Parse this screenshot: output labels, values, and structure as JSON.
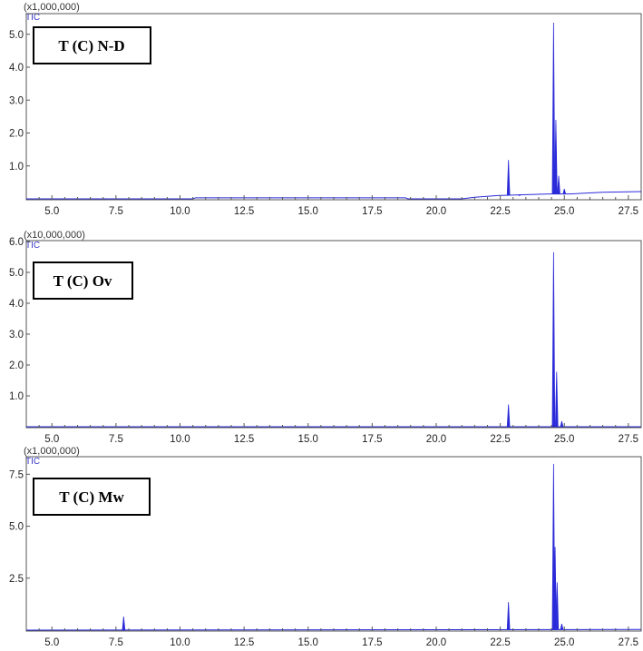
{
  "colors": {
    "trace": "#2b2bd9",
    "axis": "#555555",
    "background": "#ffffff"
  },
  "chart_data": [
    {
      "type": "line",
      "title": "T (C) N-D",
      "series_label": "TIC",
      "y_scale_label": "(x1,000,000)",
      "xlim": [
        4.0,
        28.0
      ],
      "ylim": [
        0.0,
        5.6
      ],
      "x_ticks": [
        "5.0",
        "7.5",
        "10.0",
        "12.5",
        "15.0",
        "17.5",
        "20.0",
        "22.5",
        "25.0",
        "27.5"
      ],
      "y_ticks": [
        "1.0",
        "2.0",
        "3.0",
        "4.0",
        "5.0"
      ],
      "series": [
        {
          "peaks": [
            [
              22.82,
              1.18
            ],
            [
              23.25,
              0.1
            ],
            [
              24.58,
              5.35
            ],
            [
              24.67,
              2.4
            ],
            [
              24.78,
              0.7
            ],
            [
              25.0,
              0.3
            ]
          ],
          "baseline": [
            [
              4.0,
              0.0
            ],
            [
              10.5,
              0.0
            ],
            [
              10.6,
              0.03
            ],
            [
              18.8,
              0.03
            ],
            [
              18.9,
              0.0
            ],
            [
              21.0,
              0.0
            ],
            [
              21.5,
              0.05
            ],
            [
              22.4,
              0.1
            ],
            [
              24.4,
              0.15
            ],
            [
              25.2,
              0.15
            ],
            [
              26.5,
              0.2
            ],
            [
              28.0,
              0.22
            ]
          ]
        }
      ]
    },
    {
      "type": "line",
      "title": "T (C) Ov",
      "series_label": "TIC",
      "y_scale_label": "(x10,000,000)",
      "xlim": [
        4.0,
        28.0
      ],
      "ylim": [
        0.0,
        6.0
      ],
      "x_ticks": [
        "5.0",
        "7.5",
        "10.0",
        "12.5",
        "15.0",
        "17.5",
        "20.0",
        "22.5",
        "25.0",
        "27.5"
      ],
      "y_ticks": [
        "1.0",
        "2.0",
        "3.0",
        "4.0",
        "5.0",
        "6.0"
      ],
      "series": [
        {
          "peaks": [
            [
              22.82,
              0.72
            ],
            [
              24.58,
              5.65
            ],
            [
              24.7,
              1.78
            ],
            [
              24.9,
              0.18
            ]
          ],
          "baseline": [
            [
              4.0,
              0.0
            ],
            [
              28.0,
              0.0
            ]
          ]
        }
      ]
    },
    {
      "type": "line",
      "title": "T (C) Mw",
      "series_label": "TIC",
      "y_scale_label": "(x1,000,000)",
      "xlim": [
        4.0,
        28.0
      ],
      "ylim": [
        0.0,
        8.3
      ],
      "x_ticks": [
        "5.0",
        "7.5",
        "10.0",
        "12.5",
        "15.0",
        "17.5",
        "20.0",
        "22.5",
        "25.0",
        "27.5"
      ],
      "y_ticks": [
        "2.5",
        "5.0",
        "7.5"
      ],
      "series": [
        {
          "peaks": [
            [
              7.8,
              0.65
            ],
            [
              22.82,
              1.35
            ],
            [
              24.58,
              8.0
            ],
            [
              24.64,
              4.0
            ],
            [
              24.72,
              2.3
            ],
            [
              24.9,
              0.3
            ]
          ],
          "baseline": [
            [
              4.0,
              0.0
            ],
            [
              28.0,
              0.03
            ]
          ]
        }
      ]
    }
  ]
}
